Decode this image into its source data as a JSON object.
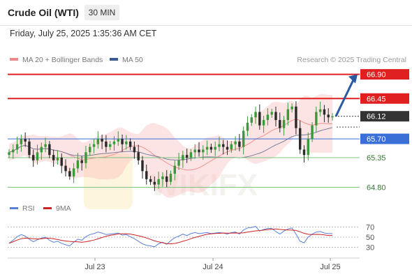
{
  "header": {
    "instrument": "Crude Oil (WTI)",
    "timeframe": "30 MIN"
  },
  "datetime": "Friday, July 25, 2025 1:35:36 AM CET",
  "legend": [
    {
      "label": "MA 20 + Bollinger Bands",
      "color": "#f08a8a"
    },
    {
      "label": "MA 50",
      "color": "#3b5b92"
    }
  ],
  "credit": "Research © 2025 Trading Central",
  "watermark": "WIKIFX",
  "chart_data": {
    "type": "candlestick",
    "x_ticks": [
      "Jul 23",
      "Jul 24",
      "Jul 25"
    ],
    "levels": [
      {
        "label": "66.90",
        "value": 66.9,
        "kind": "resistance",
        "color": "#e02020"
      },
      {
        "label": "66.45",
        "value": 66.45,
        "kind": "resistance",
        "color": "#e02020"
      },
      {
        "label": "66.12",
        "value": 66.12,
        "kind": "last-price",
        "color": "#333333"
      },
      {
        "label": "65.70",
        "value": 65.7,
        "kind": "pivot",
        "color": "#3a6fd8"
      },
      {
        "label": "65.35",
        "value": 65.35,
        "kind": "support",
        "color": "#7cc47c"
      },
      {
        "label": "64.80",
        "value": 64.8,
        "kind": "support",
        "color": "#7cc47c"
      }
    ],
    "y_range": [
      64.65,
      67.05
    ],
    "trend_arrow": {
      "from": 66.12,
      "to": 66.9,
      "direction": "up"
    },
    "closes": [
      65.45,
      65.5,
      65.6,
      65.7,
      65.65,
      65.4,
      65.3,
      65.45,
      65.55,
      65.6,
      65.4,
      65.3,
      65.35,
      65.2,
      65.1,
      65.0,
      65.15,
      65.3,
      65.25,
      65.45,
      65.55,
      65.6,
      65.7,
      65.65,
      65.55,
      65.6,
      65.65,
      65.7,
      65.6,
      65.65,
      65.55,
      65.45,
      65.3,
      65.1,
      64.95,
      64.9,
      64.85,
      64.95,
      65.0,
      64.9,
      65.05,
      65.2,
      65.3,
      65.4,
      65.35,
      65.45,
      65.5,
      65.45,
      65.5,
      65.55,
      65.5,
      65.55,
      65.6,
      65.55,
      65.5,
      65.6,
      65.65,
      65.55,
      65.85,
      66.0,
      66.1,
      66.2,
      65.95,
      66.05,
      66.15,
      66.2,
      66.05,
      65.9,
      66.05,
      66.25,
      66.3,
      65.9,
      65.5,
      65.4,
      65.7,
      65.95,
      66.2,
      66.25,
      66.15,
      66.1,
      66.12
    ],
    "rsi": {
      "label": "RSI",
      "ma_label": "9MA",
      "ticks": [
        70,
        50,
        30
      ],
      "range": [
        20,
        80
      ],
      "values": [
        38,
        44,
        51,
        55,
        52,
        46,
        41,
        45,
        48,
        50,
        44,
        40,
        42,
        38,
        35,
        33,
        40,
        46,
        44,
        51,
        55,
        57,
        60,
        58,
        55,
        56,
        57,
        58,
        54,
        55,
        51,
        47,
        42,
        37,
        34,
        33,
        31,
        37,
        40,
        36,
        43,
        49,
        52,
        56,
        53,
        57,
        59,
        57,
        58,
        59,
        57,
        58,
        59,
        58,
        56,
        59,
        60,
        56,
        64,
        68,
        69,
        71,
        62,
        65,
        67,
        67,
        61,
        56,
        62,
        66,
        68,
        56,
        42,
        39,
        50,
        56,
        60,
        61,
        58,
        57,
        57
      ]
    }
  }
}
